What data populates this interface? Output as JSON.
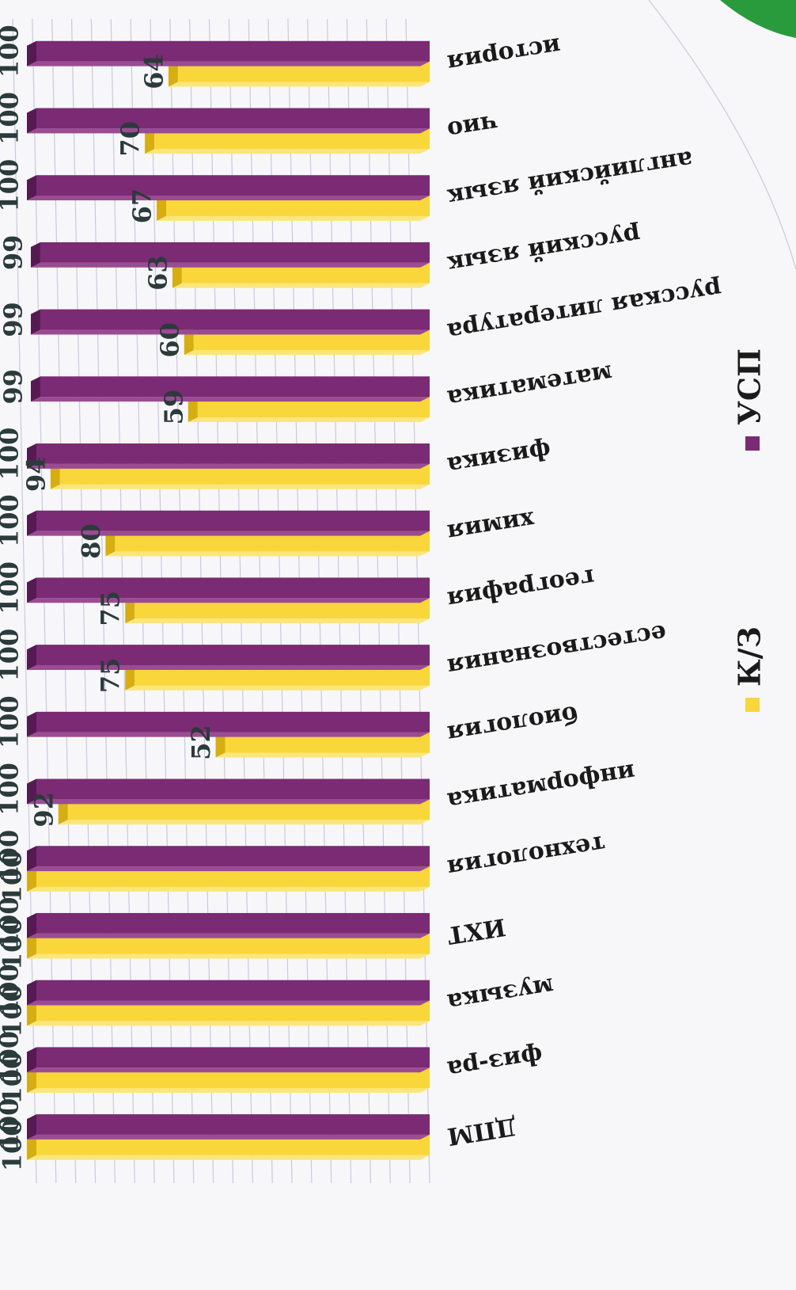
{
  "colors": {
    "kz": "#f9d63a",
    "kz_side": "#d6ae12",
    "usp": "#7b2a74",
    "usp_side": "#561a52",
    "grid": "#c9c9dc",
    "text": "#2b3a3a",
    "green": "#2a9b3c"
  },
  "chart_data": {
    "type": "bar",
    "orientation": "horizontal",
    "categories": [
      "ДПМ",
      "физ-ра",
      "музыка",
      "ИХТ",
      "технология",
      "информатика",
      "биология",
      "естествознания",
      "география",
      "химия",
      "физика",
      "математика",
      "русская литература",
      "русский язык",
      "английский язык",
      "чио",
      "история"
    ],
    "series": [
      {
        "name": "К/З",
        "values": [
          100,
          100,
          100,
          100,
          100,
          92,
          52,
          75,
          75,
          80,
          94,
          59,
          60,
          63,
          67,
          70,
          64
        ]
      },
      {
        "name": "УСП",
        "values": [
          100,
          100,
          100,
          100,
          100,
          100,
          100,
          100,
          100,
          100,
          100,
          99,
          99,
          99,
          100,
          100,
          100
        ]
      }
    ],
    "xlim": [
      0,
      100
    ],
    "grid": true,
    "legend_position": "bottom",
    "orientation_note": "image rotated"
  }
}
